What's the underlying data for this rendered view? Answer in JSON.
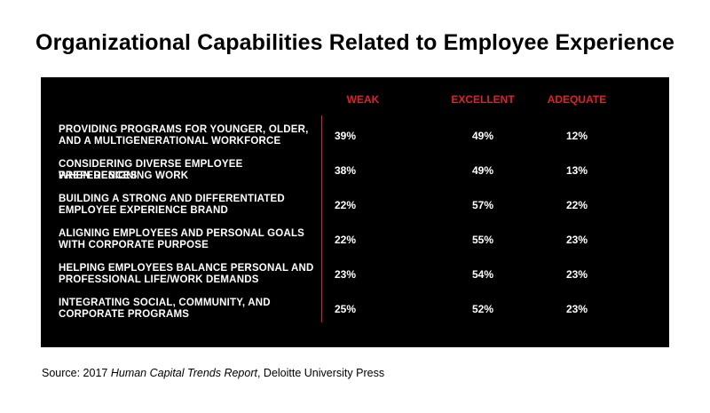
{
  "chart_data": {
    "type": "table",
    "title": "Organizational Capabilities Related to Employee Experience",
    "columns": [
      "WEAK",
      "EXCELLENT",
      "ADEQUATE"
    ],
    "rows": [
      {
        "label": [
          "PROVIDING PROGRAMS FOR YOUNGER, OLDER,",
          "AND A MULTIGENERATIONAL WORKFORCE"
        ],
        "values": [
          "39%",
          "49%",
          "12%"
        ]
      },
      {
        "label": [
          "CONSIDERING DIVERSE EMPLOYEE PREFERENCES",
          "WHEN DESIGNING WORK"
        ],
        "values": [
          "38%",
          "49%",
          "13%"
        ]
      },
      {
        "label": [
          "BUILDING A STRONG AND DIFFERENTIATED",
          "EMPLOYEE EXPERIENCE BRAND"
        ],
        "values": [
          "22%",
          "57%",
          "22%"
        ]
      },
      {
        "label": [
          "ALIGNING EMPLOYEES AND PERSONAL GOALS",
          "WITH CORPORATE PURPOSE"
        ],
        "values": [
          "22%",
          "55%",
          "23%"
        ]
      },
      {
        "label": [
          "HELPING EMPLOYEES BALANCE PERSONAL AND",
          "PROFESSIONAL LIFE/WORK DEMANDS"
        ],
        "values": [
          "23%",
          "54%",
          "23%"
        ]
      },
      {
        "label": [
          "INTEGRATING SOCIAL, COMMUNITY, AND",
          "CORPORATE PROGRAMS"
        ],
        "values": [
          "25%",
          "52%",
          "23%"
        ]
      }
    ]
  },
  "source": {
    "prefix": "Source: 2017 ",
    "publication": "Human Capital Trends Report",
    "suffix": ", Deloitte University Press"
  },
  "colors": {
    "panel": "#000000",
    "accent": "#e0202a",
    "text": "#ffffff"
  }
}
